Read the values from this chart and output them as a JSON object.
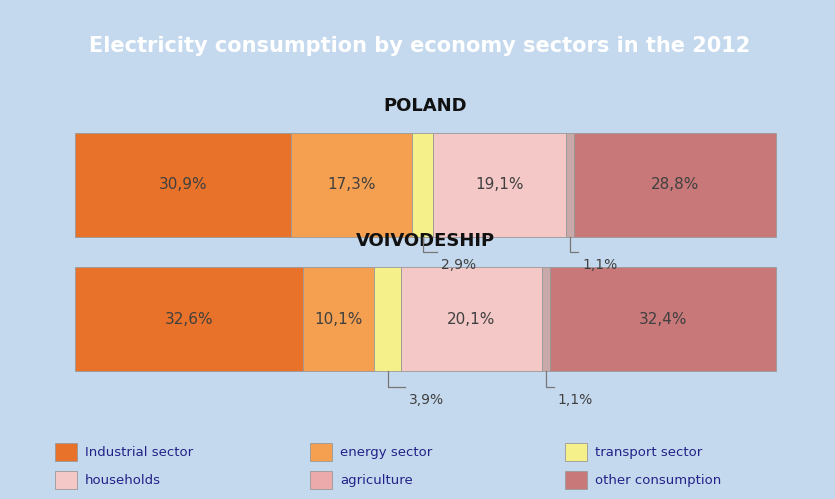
{
  "title": "Electricity consumption by economy sectors in the 2012",
  "title_bg": "#E8612A",
  "title_color": "#FFFFFF",
  "bg_color": "#C5D9EE",
  "poland_label": "POLAND",
  "voivodeship_label": "VOIVODESHIP",
  "poland_data": [
    {
      "label": "30,9%",
      "value": 30.9,
      "color": "#E8722A",
      "below": false
    },
    {
      "label": "17,3%",
      "value": 17.3,
      "color": "#F5A050",
      "below": false
    },
    {
      "label": "2,9%",
      "value": 2.9,
      "color": "#F5F08A",
      "below": true
    },
    {
      "label": "19,1%",
      "value": 19.1,
      "color": "#F5C8C8",
      "below": false
    },
    {
      "label": "1,1%",
      "value": 1.1,
      "color": "#C8A8A8",
      "below": true
    },
    {
      "label": "28,8%",
      "value": 28.8,
      "color": "#C87878",
      "below": false
    }
  ],
  "voivodeship_data": [
    {
      "label": "32,6%",
      "value": 32.6,
      "color": "#E8722A",
      "below": false
    },
    {
      "label": "10,1%",
      "value": 10.1,
      "color": "#F5A050",
      "below": false
    },
    {
      "label": "3,9%",
      "value": 3.9,
      "color": "#F5F08A",
      "below": true
    },
    {
      "label": "20,1%",
      "value": 20.1,
      "color": "#F5C8C8",
      "below": false
    },
    {
      "label": "1,1%",
      "value": 1.1,
      "color": "#C8A8A8",
      "below": true
    },
    {
      "label": "32,4%",
      "value": 32.4,
      "color": "#C87878",
      "below": false
    }
  ],
  "legend_items": [
    {
      "label": "Industrial sector",
      "color": "#E8722A"
    },
    {
      "label": "energy sector",
      "color": "#F5A050"
    },
    {
      "label": "transport sector",
      "color": "#F5F08A"
    },
    {
      "label": "households",
      "color": "#F5C8C8"
    },
    {
      "label": "agriculture",
      "color": "#EDAAAA"
    },
    {
      "label": "other consumption",
      "color": "#C87878"
    }
  ],
  "text_color": "#404040",
  "bar_edge_color": "#999999",
  "label_fontsize": 11,
  "title_fontsize": 15,
  "section_fontsize": 12,
  "legend_text_color": "#222288"
}
